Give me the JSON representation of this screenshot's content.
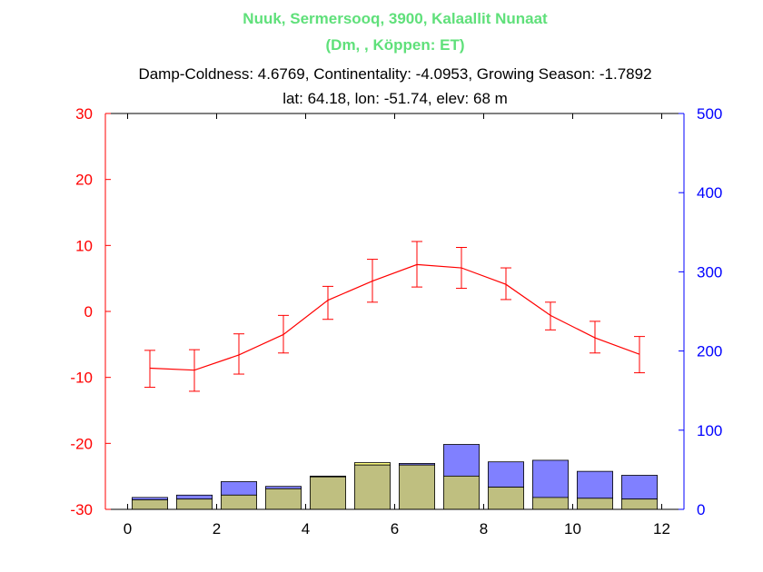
{
  "chart_data": {
    "type": "bar+line",
    "title_line1": "Nuuk, Sermersooq, 3900, Kalaallit Nunaat",
    "title_line2": "(Dm, , Köppen: ET)",
    "subtitle_line1": "Damp-Coldness: 4.6769, Continentality: -4.0953, Growing Season: -1.7892",
    "subtitle_line2": "lat: 64.18, lon: -51.74, elev: 68 m",
    "title_color": "#5fe07a",
    "xlim": [
      -0.5,
      12.5
    ],
    "x_ticks": [
      0,
      2,
      4,
      6,
      8,
      10,
      12
    ],
    "left_axis": {
      "ylim": [
        -30,
        30
      ],
      "ticks": [
        -30,
        -20,
        -10,
        0,
        10,
        20,
        30
      ],
      "color": "#ff0000"
    },
    "right_axis": {
      "ylim": [
        0,
        500
      ],
      "ticks": [
        0,
        100,
        200,
        300,
        400,
        500
      ],
      "color": "#0000ff"
    },
    "months_x": [
      0.5,
      1.5,
      2.5,
      3.5,
      4.5,
      5.5,
      6.5,
      7.5,
      8.5,
      9.5,
      10.5,
      11.5
    ],
    "temperature": {
      "color": "#ff0000",
      "mean": [
        -8.6,
        -8.9,
        -6.6,
        -3.5,
        1.7,
        4.6,
        7.1,
        6.6,
        4.1,
        -0.6,
        -4.0,
        -6.5
      ],
      "upper": [
        -5.9,
        -5.8,
        -3.4,
        -0.6,
        3.8,
        7.9,
        10.6,
        9.7,
        6.6,
        1.4,
        -1.5,
        -3.8
      ],
      "lower": [
        -11.5,
        -12.1,
        -9.5,
        -6.3,
        -1.2,
        1.4,
        3.7,
        3.5,
        1.8,
        -2.8,
        -6.3,
        -9.3
      ]
    },
    "precipitation": {
      "color": "#8080ff",
      "values": [
        15,
        18,
        35,
        29,
        42,
        56,
        58,
        82,
        60,
        62,
        48,
        43
      ]
    },
    "evaporation": {
      "color": "#ffff80",
      "values": [
        12,
        13,
        18,
        26,
        41,
        59,
        56,
        42,
        28,
        15,
        14,
        13
      ]
    },
    "overlap_color": "#bfbf80"
  }
}
